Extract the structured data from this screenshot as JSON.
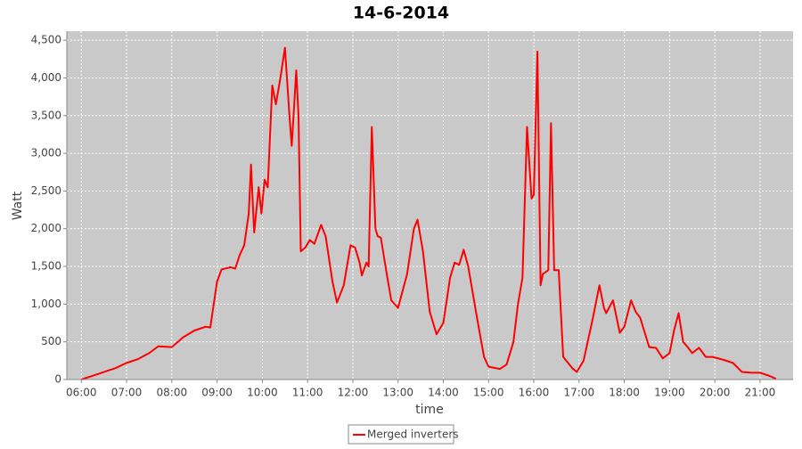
{
  "chart_data": {
    "type": "line",
    "title": "14-6-2014",
    "xlabel": "time",
    "ylabel": "Watt",
    "xlim": [
      5.68,
      21.73
    ],
    "ylim": [
      0,
      4620
    ],
    "grid": true,
    "legend": "bottom",
    "xticks": [
      {
        "value": 6,
        "label": "06:00"
      },
      {
        "value": 7,
        "label": "07:00"
      },
      {
        "value": 8,
        "label": "08:00"
      },
      {
        "value": 9,
        "label": "09:00"
      },
      {
        "value": 10,
        "label": "10:00"
      },
      {
        "value": 11,
        "label": "11:00"
      },
      {
        "value": 12,
        "label": "12:00"
      },
      {
        "value": 13,
        "label": "13:00"
      },
      {
        "value": 14,
        "label": "14:00"
      },
      {
        "value": 15,
        "label": "15:00"
      },
      {
        "value": 16,
        "label": "16:00"
      },
      {
        "value": 17,
        "label": "17:00"
      },
      {
        "value": 18,
        "label": "18:00"
      },
      {
        "value": 19,
        "label": "19:00"
      },
      {
        "value": 20,
        "label": "20:00"
      },
      {
        "value": 21,
        "label": "21:00"
      }
    ],
    "yticks": [
      0,
      500,
      {
        "value": 1000,
        "label": "1,000"
      },
      {
        "value": 1500,
        "label": "1,500"
      },
      {
        "value": 2000,
        "label": "2,000"
      },
      {
        "value": 2500,
        "label": "2,500"
      },
      {
        "value": 3000,
        "label": "3,000"
      },
      {
        "value": 3500,
        "label": "3,500"
      },
      {
        "value": 4000,
        "label": "4,000"
      },
      {
        "value": 4500,
        "label": "4,500"
      }
    ],
    "x": [
      6.0,
      6.25,
      6.5,
      6.75,
      7.0,
      7.25,
      7.5,
      7.7,
      8.0,
      8.25,
      8.5,
      8.75,
      8.85,
      9.0,
      9.1,
      9.3,
      9.4,
      9.5,
      9.6,
      9.7,
      9.75,
      9.82,
      9.92,
      9.98,
      10.05,
      10.12,
      10.22,
      10.3,
      10.4,
      10.5,
      10.6,
      10.65,
      10.75,
      10.8,
      10.85,
      10.95,
      11.05,
      11.15,
      11.3,
      11.4,
      11.55,
      11.65,
      11.8,
      11.95,
      12.05,
      12.15,
      12.2,
      12.3,
      12.35,
      12.42,
      12.5,
      12.55,
      12.62,
      12.75,
      12.85,
      13.0,
      13.2,
      13.35,
      13.43,
      13.55,
      13.7,
      13.85,
      14.0,
      14.15,
      14.25,
      14.35,
      14.45,
      14.55,
      14.75,
      14.9,
      15.0,
      15.25,
      15.4,
      15.55,
      15.65,
      15.75,
      15.85,
      15.95,
      16.0,
      16.08,
      16.15,
      16.2,
      16.32,
      16.38,
      16.45,
      16.55,
      16.65,
      16.85,
      16.95,
      17.1,
      17.3,
      17.45,
      17.55,
      17.6,
      17.75,
      17.9,
      18.0,
      18.15,
      18.25,
      18.35,
      18.55,
      18.7,
      18.85,
      19.0,
      19.1,
      19.2,
      19.3,
      19.4,
      19.5,
      19.65,
      19.8,
      19.95,
      20.2,
      20.4,
      20.6,
      20.8,
      21.0,
      21.2,
      21.35
    ],
    "series": [
      {
        "name": "Merged inverters",
        "color": "#ff0000",
        "values": [
          0,
          50,
          100,
          150,
          220,
          270,
          350,
          440,
          430,
          560,
          650,
          700,
          690,
          1300,
          1460,
          1490,
          1470,
          1650,
          1780,
          2200,
          2850,
          1950,
          2550,
          2200,
          2650,
          2550,
          3900,
          3650,
          4000,
          4400,
          3500,
          3100,
          4100,
          3500,
          1700,
          1750,
          1850,
          1800,
          2050,
          1900,
          1300,
          1020,
          1250,
          1780,
          1750,
          1550,
          1380,
          1550,
          1500,
          3350,
          2000,
          1900,
          1880,
          1400,
          1050,
          950,
          1400,
          2000,
          2120,
          1700,
          900,
          600,
          750,
          1350,
          1550,
          1520,
          1720,
          1500,
          800,
          300,
          170,
          140,
          200,
          500,
          1000,
          1350,
          3350,
          2400,
          2450,
          4350,
          1250,
          1400,
          1450,
          3400,
          1450,
          1450,
          300,
          150,
          100,
          250,
          800,
          1250,
          950,
          880,
          1050,
          620,
          700,
          1050,
          900,
          820,
          430,
          420,
          280,
          350,
          650,
          880,
          500,
          430,
          350,
          420,
          300,
          300,
          260,
          220,
          100,
          90,
          90,
          50,
          10
        ]
      }
    ]
  }
}
